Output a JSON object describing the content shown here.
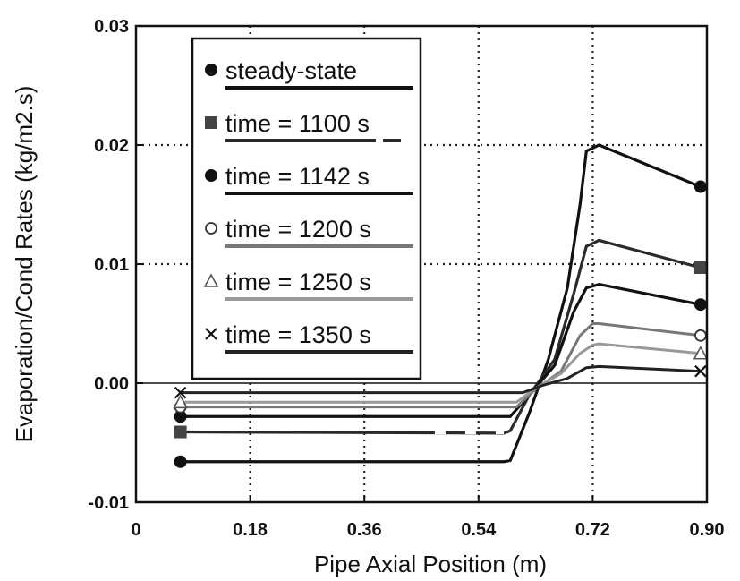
{
  "chart_data": {
    "type": "line",
    "title": "",
    "xlabel": "Pipe Axial Position (m)",
    "ylabel": "Evaporation/Cond Rates (kg/m2.s)",
    "xlim": [
      0,
      0.9
    ],
    "ylim": [
      -0.01,
      0.03
    ],
    "xticks": [
      "0",
      "0.18",
      "0.36",
      "0.54",
      "0.72",
      "0.90"
    ],
    "xtick_values": [
      0,
      0.18,
      0.36,
      0.54,
      0.72,
      0.9
    ],
    "yticks": [
      "-0.01",
      "0.00",
      "0.01",
      "0.02",
      "0.03"
    ],
    "ytick_values": [
      -0.01,
      0.0,
      0.01,
      0.02,
      0.03
    ],
    "grid": "dotted",
    "legend_position": "top-left",
    "series": [
      {
        "name": "steady-state",
        "marker": "filled-circle",
        "color": "#111111",
        "x": [
          0.07,
          0.58,
          0.59,
          0.62,
          0.65,
          0.68,
          0.7,
          0.71,
          0.73,
          0.89
        ],
        "y": [
          -0.0066,
          -0.0066,
          -0.0065,
          -0.0025,
          0.002,
          0.008,
          0.015,
          0.0195,
          0.02,
          0.0165
        ]
      },
      {
        "name": "time = 1100 s",
        "marker": "filled-square",
        "color": "#2a2a2a",
        "dashed_segment": [
          0.44,
          0.58
        ],
        "x": [
          0.07,
          0.58,
          0.59,
          0.62,
          0.66,
          0.69,
          0.71,
          0.73,
          0.89
        ],
        "y": [
          -0.0041,
          -0.0042,
          -0.004,
          -0.001,
          0.002,
          0.0075,
          0.0115,
          0.012,
          0.0097
        ]
      },
      {
        "name": "time = 1142 s",
        "marker": "filled-circle",
        "color": "#111111",
        "x": [
          0.07,
          0.59,
          0.62,
          0.66,
          0.69,
          0.71,
          0.73,
          0.89
        ],
        "y": [
          -0.0028,
          -0.0028,
          -0.001,
          0.0015,
          0.006,
          0.008,
          0.0083,
          0.0066
        ]
      },
      {
        "name": "time = 1200 s",
        "marker": "open-circle",
        "color": "#777777",
        "x": [
          0.07,
          0.6,
          0.63,
          0.67,
          0.7,
          0.72,
          0.73,
          0.89
        ],
        "y": [
          -0.002,
          -0.002,
          -0.0005,
          0.001,
          0.004,
          0.005,
          0.005,
          0.004
        ]
      },
      {
        "name": "time = 1250 s",
        "marker": "open-triangle",
        "color": "#999999",
        "x": [
          0.07,
          0.6,
          0.63,
          0.67,
          0.7,
          0.72,
          0.73,
          0.89
        ],
        "y": [
          -0.0016,
          -0.0016,
          -0.0004,
          0.0008,
          0.0025,
          0.0032,
          0.0033,
          0.0025
        ]
      },
      {
        "name": "time = 1350 s",
        "marker": "x-cross",
        "color": "#222222",
        "x": [
          0.07,
          0.61,
          0.64,
          0.68,
          0.71,
          0.73,
          0.89
        ],
        "y": [
          -0.0008,
          -0.0008,
          -0.0002,
          0.0004,
          0.0013,
          0.0014,
          0.001
        ]
      }
    ]
  }
}
